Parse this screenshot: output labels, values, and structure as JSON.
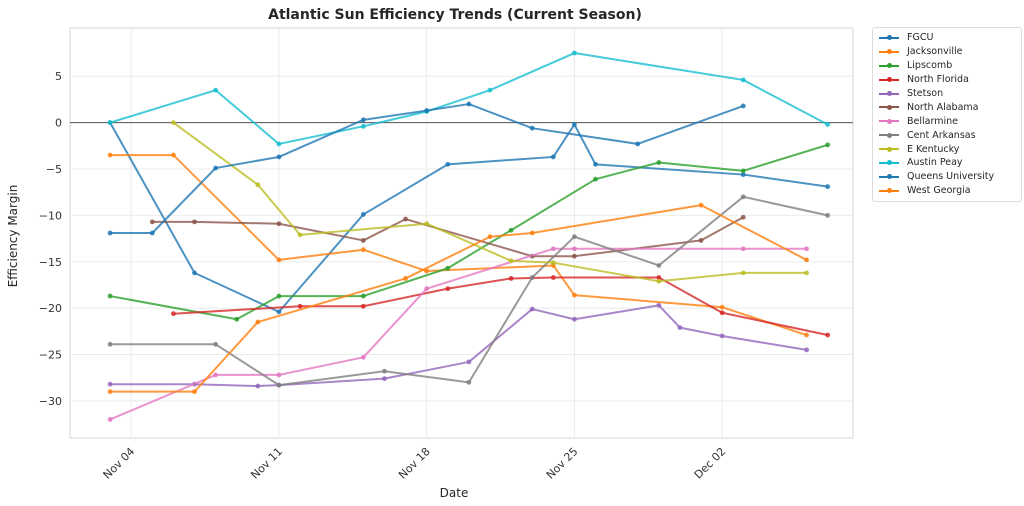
{
  "chart_data": {
    "type": "line",
    "title": "Atlantic Sun Efficiency Trends (Current Season)",
    "xlabel": "Date",
    "ylabel": "Efficiency Margin",
    "x_ticks": [
      "Nov 04",
      "Nov 11",
      "Nov 18",
      "Nov 25",
      "Dec 02"
    ],
    "x_tick_days": [
      1,
      8,
      15,
      22,
      29
    ],
    "xlim_days": [
      -1.9,
      35.2
    ],
    "day_zero": "Nov 03",
    "y_ticks": [
      5,
      0,
      -5,
      -10,
      -15,
      -20,
      -25,
      -30
    ],
    "ylim": [
      -34,
      10.2
    ],
    "grid": true,
    "reference_line": 0,
    "legend_position": "outside-right",
    "series": [
      {
        "name": "FGCU",
        "color": "#1f77b4",
        "points": [
          [
            "Nov 03",
            0
          ],
          [
            "Nov 07",
            -16.2
          ],
          [
            "Nov 11",
            -20.4
          ],
          [
            "Nov 15",
            -9.9
          ],
          [
            "Nov 19",
            -4.5
          ],
          [
            "Nov 24",
            -3.7
          ],
          [
            "Nov 25",
            -0.2
          ],
          [
            "Nov 26",
            -4.5
          ],
          [
            "Dec 03",
            -5.6
          ],
          [
            "Dec 07",
            -6.9
          ]
        ]
      },
      {
        "name": "Jacksonville",
        "color": "#ff7f0e",
        "points": [
          [
            "Nov 03",
            -3.5
          ],
          [
            "Nov 06",
            -3.5
          ],
          [
            "Nov 11",
            -14.8
          ],
          [
            "Nov 15",
            -13.7
          ],
          [
            "Nov 18",
            -16.0
          ],
          [
            "Nov 24",
            -15.4
          ],
          [
            "Nov 25",
            -18.6
          ],
          [
            "Dec 02",
            -19.9
          ],
          [
            "Dec 06",
            -22.9
          ]
        ]
      },
      {
        "name": "Lipscomb",
        "color": "#2ca02c",
        "points": [
          [
            "Nov 03",
            -18.7
          ],
          [
            "Nov 09",
            -21.2
          ],
          [
            "Nov 11",
            -18.7
          ],
          [
            "Nov 15",
            -18.7
          ],
          [
            "Nov 19",
            -15.7
          ],
          [
            "Nov 22",
            -11.6
          ],
          [
            "Nov 26",
            -6.1
          ],
          [
            "Nov 29",
            -4.3
          ],
          [
            "Dec 03",
            -5.2
          ],
          [
            "Dec 07",
            -2.4
          ]
        ]
      },
      {
        "name": "North Florida",
        "color": "#d62728",
        "points": [
          [
            "Nov 06",
            -20.6
          ],
          [
            "Nov 12",
            -19.8
          ],
          [
            "Nov 15",
            -19.8
          ],
          [
            "Nov 19",
            -17.9
          ],
          [
            "Nov 22",
            -16.8
          ],
          [
            "Nov 24",
            -16.7
          ],
          [
            "Nov 29",
            -16.7
          ],
          [
            "Dec 02",
            -20.5
          ],
          [
            "Dec 07",
            -22.9
          ]
        ]
      },
      {
        "name": "Stetson",
        "color": "#9467bd",
        "points": [
          [
            "Nov 03",
            -28.2
          ],
          [
            "Nov 07",
            -28.2
          ],
          [
            "Nov 10",
            -28.4
          ],
          [
            "Nov 11",
            -28.3
          ],
          [
            "Nov 16",
            -27.6
          ],
          [
            "Nov 20",
            -25.8
          ],
          [
            "Nov 23",
            -20.1
          ],
          [
            "Nov 25",
            -21.2
          ],
          [
            "Nov 29",
            -19.7
          ],
          [
            "Nov 30",
            -22.1
          ],
          [
            "Dec 02",
            -23.0
          ],
          [
            "Dec 06",
            -24.5
          ]
        ]
      },
      {
        "name": "North Alabama",
        "color": "#8c564b",
        "points": [
          [
            "Nov 05",
            -10.7
          ],
          [
            "Nov 07",
            -10.7
          ],
          [
            "Nov 11",
            -10.9
          ],
          [
            "Nov 15",
            -12.7
          ],
          [
            "Nov 17",
            -10.4
          ],
          [
            "Nov 23",
            -14.4
          ],
          [
            "Nov 25",
            -14.4
          ],
          [
            "Dec 01",
            -12.7
          ],
          [
            "Dec 03",
            -10.2
          ]
        ]
      },
      {
        "name": "Bellarmine",
        "color": "#e377c2",
        "points": [
          [
            "Nov 03",
            -32.0
          ],
          [
            "Nov 08",
            -27.2
          ],
          [
            "Nov 11",
            -27.2
          ],
          [
            "Nov 15",
            -25.3
          ],
          [
            "Nov 18",
            -17.9
          ],
          [
            "Nov 24",
            -13.6
          ],
          [
            "Nov 25",
            -13.6
          ],
          [
            "Dec 03",
            -13.6
          ],
          [
            "Dec 06",
            -13.6
          ]
        ]
      },
      {
        "name": "Cent Arkansas",
        "color": "#7f7f7f",
        "points": [
          [
            "Nov 03",
            -23.9
          ],
          [
            "Nov 08",
            -23.9
          ],
          [
            "Nov 11",
            -28.3
          ],
          [
            "Nov 16",
            -26.8
          ],
          [
            "Nov 20",
            -28.0
          ],
          [
            "Nov 23",
            -16.7
          ],
          [
            "Nov 25",
            -12.3
          ],
          [
            "Nov 29",
            -15.4
          ],
          [
            "Dec 03",
            -8.0
          ],
          [
            "Dec 07",
            -10.0
          ]
        ]
      },
      {
        "name": "E Kentucky",
        "color": "#bcbd22",
        "points": [
          [
            "Nov 06",
            0
          ],
          [
            "Nov 10",
            -6.7
          ],
          [
            "Nov 12",
            -12.1
          ],
          [
            "Nov 18",
            -10.9
          ],
          [
            "Nov 22",
            -14.9
          ],
          [
            "Nov 24",
            -15.1
          ],
          [
            "Nov 29",
            -17.1
          ],
          [
            "Dec 03",
            -16.2
          ],
          [
            "Dec 06",
            -16.2
          ]
        ]
      },
      {
        "name": "Austin Peay",
        "color": "#17becf",
        "points": [
          [
            "Nov 03",
            0
          ],
          [
            "Nov 08",
            3.5
          ],
          [
            "Nov 11",
            -2.3
          ],
          [
            "Nov 15",
            -0.4
          ],
          [
            "Nov 18",
            1.2
          ],
          [
            "Nov 21",
            3.5
          ],
          [
            "Nov 25",
            7.5
          ],
          [
            "Dec 03",
            4.6
          ],
          [
            "Dec 07",
            -0.2
          ]
        ]
      },
      {
        "name": "Queens University",
        "color": "#1f77b4",
        "points": [
          [
            "Nov 03",
            -11.9
          ],
          [
            "Nov 05",
            -11.9
          ],
          [
            "Nov 08",
            -4.9
          ],
          [
            "Nov 11",
            -3.7
          ],
          [
            "Nov 15",
            0.3
          ],
          [
            "Nov 18",
            1.3
          ],
          [
            "Nov 20",
            2.0
          ],
          [
            "Nov 23",
            -0.6
          ],
          [
            "Nov 28",
            -2.3
          ],
          [
            "Dec 03",
            1.8
          ]
        ]
      },
      {
        "name": "West Georgia",
        "color": "#ff7f0e",
        "points": [
          [
            "Nov 03",
            -29.0
          ],
          [
            "Nov 07",
            -29.0
          ],
          [
            "Nov 10",
            -21.5
          ],
          [
            "Nov 17",
            -16.8
          ],
          [
            "Nov 21",
            -12.3
          ],
          [
            "Nov 23",
            -11.9
          ],
          [
            "Dec 01",
            -8.9
          ],
          [
            "Dec 06",
            -14.8
          ]
        ]
      }
    ]
  }
}
